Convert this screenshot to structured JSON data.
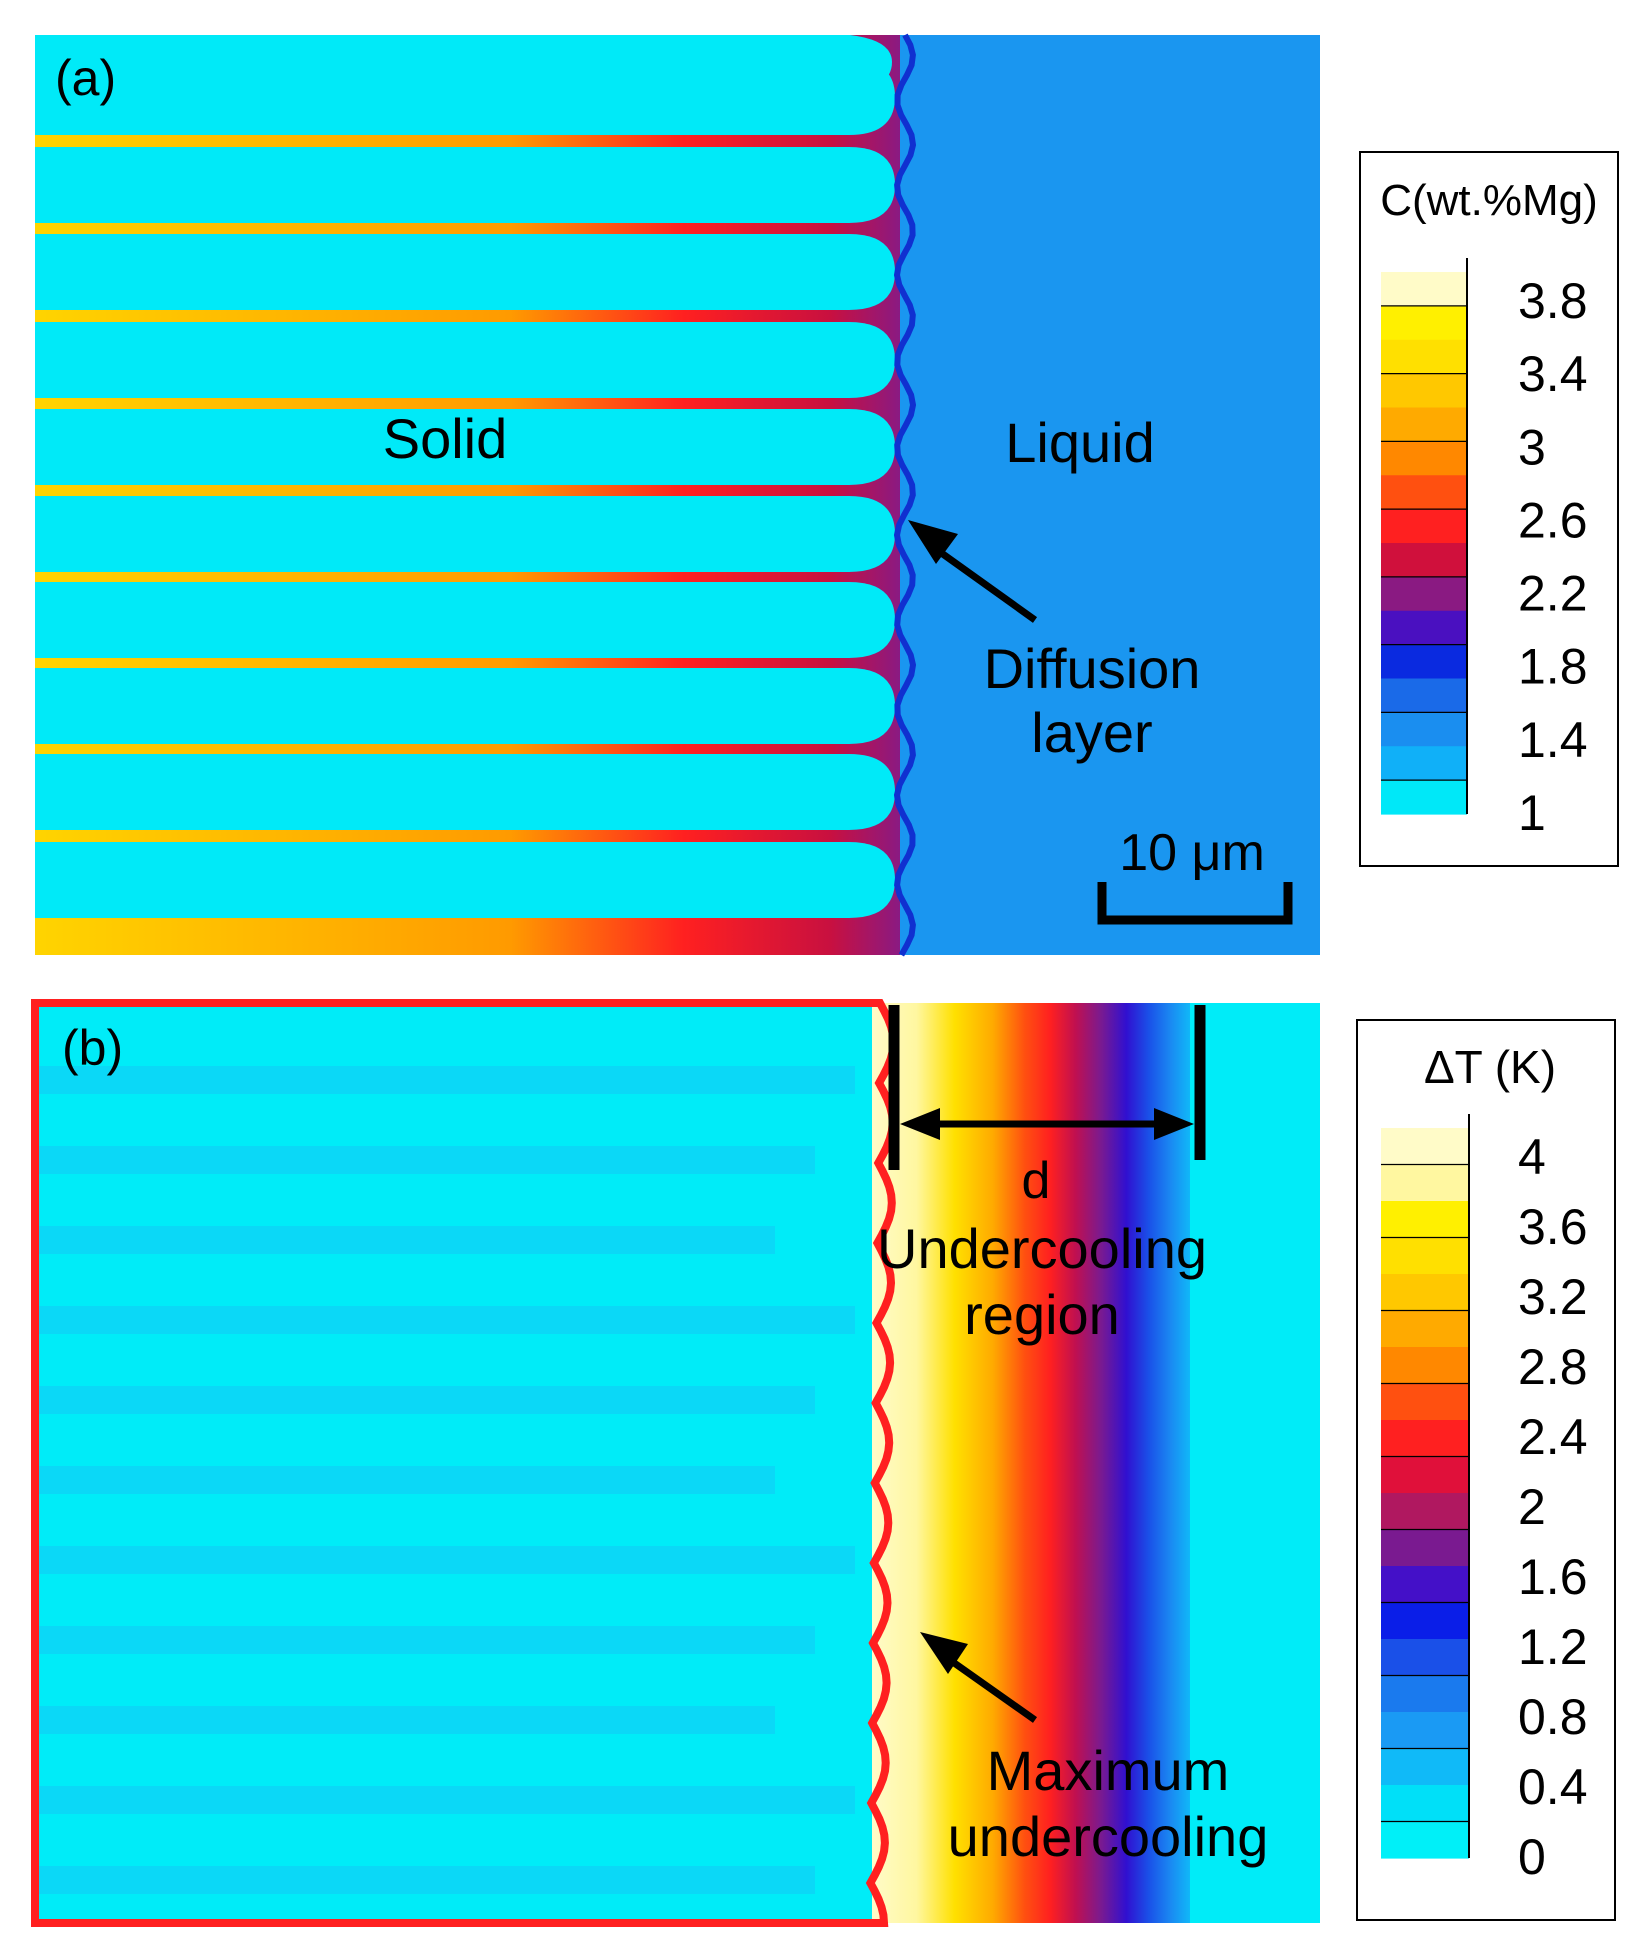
{
  "panel_a": {
    "label": "(a)",
    "solid_label": "Solid",
    "liquid_label": "Liquid",
    "diffusion_label_line1": "Diffusion",
    "diffusion_label_line2": "layer",
    "scale_label": "10 μm"
  },
  "panel_b": {
    "label": "(b)",
    "d_label": "d",
    "region_line1": "Undercooling",
    "region_line2": "region",
    "max_line1": "Maximum",
    "max_line2": "undercooling"
  },
  "legend_a": {
    "title": "C(wt.%Mg)",
    "ticks": [
      "3.8",
      "3.4",
      "3",
      "2.6",
      "2.2",
      "1.8",
      "1.4",
      "1"
    ],
    "colors": [
      "#fffbc8",
      "#fff000",
      "#ffe000",
      "#ffc800",
      "#ffaa00",
      "#ff8800",
      "#ff5010",
      "#ff2020",
      "#d0103c",
      "#8a1a82",
      "#4a10c0",
      "#0a2ae0",
      "#1a6ae8",
      "#1a8ef0",
      "#10b0f8",
      "#00e8f8"
    ]
  },
  "legend_b": {
    "title": "ΔT (K)",
    "ticks": [
      "4",
      "3.6",
      "3.2",
      "2.8",
      "2.4",
      "2",
      "1.6",
      "1.2",
      "0.8",
      "0.4",
      "0"
    ],
    "colors": [
      "#fffbc8",
      "#fff7a0",
      "#fff000",
      "#ffe000",
      "#ffc800",
      "#ffaa00",
      "#ff8800",
      "#ff5010",
      "#ff2020",
      "#e0103a",
      "#b01860",
      "#7a1a90",
      "#4410c8",
      "#0a1ee8",
      "#1a50e8",
      "#1a7aee",
      "#1a9af4",
      "#10baf8",
      "#00e0f8",
      "#00f0f8"
    ]
  }
}
